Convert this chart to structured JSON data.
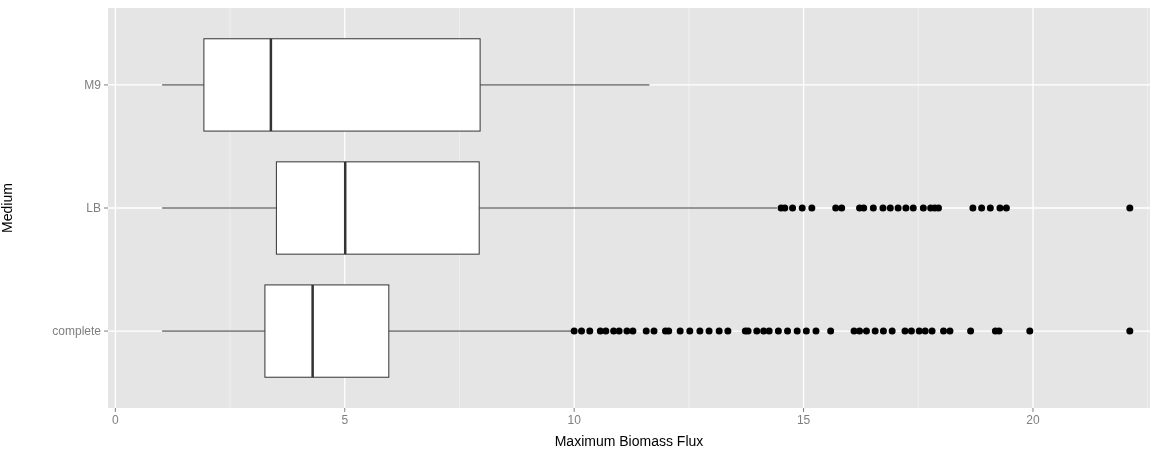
{
  "chart_data": {
    "type": "box",
    "orientation": "horizontal",
    "xlabel": "Maximum Biomass Flux",
    "ylabel": "Medium",
    "categories": [
      "M9",
      "LB",
      "complete"
    ],
    "xlim": [
      -0.16,
      22.55
    ],
    "xticks": [
      0,
      5,
      10,
      15,
      20
    ],
    "grid": true,
    "boxes": [
      {
        "low": 1.02,
        "q1": 1.93,
        "median": 3.39,
        "q3": 7.95,
        "high": 11.64
      },
      {
        "low": 1.02,
        "q1": 3.51,
        "median": 5.01,
        "q3": 7.93,
        "high": 14.42,
        "outliers": [
          14.51,
          14.59,
          14.76,
          14.97,
          15.18,
          15.7,
          15.83,
          16.22,
          16.31,
          16.52,
          16.73,
          16.89,
          17.06,
          17.23,
          17.39,
          17.61,
          17.77,
          17.86,
          17.94,
          18.69,
          18.88,
          19.07,
          19.28,
          19.42,
          22.11
        ]
      },
      {
        "low": 1.02,
        "q1": 3.26,
        "median": 4.3,
        "q3": 5.96,
        "high": 9.95,
        "outliers": [
          10.0,
          10.16,
          10.34,
          10.57,
          10.69,
          10.86,
          10.98,
          11.15,
          11.28,
          11.57,
          11.74,
          11.99,
          12.06,
          12.31,
          12.52,
          12.74,
          12.94,
          13.16,
          13.35,
          13.73,
          13.79,
          13.98,
          14.13,
          14.25,
          14.45,
          14.65,
          14.86,
          15.06,
          15.27,
          15.59,
          16.1,
          16.22,
          16.37,
          16.56,
          16.74,
          16.93,
          17.21,
          17.35,
          17.52,
          17.65,
          17.8,
          18.05,
          18.19,
          18.64,
          19.18,
          19.26,
          19.93,
          22.11
        ]
      }
    ]
  }
}
